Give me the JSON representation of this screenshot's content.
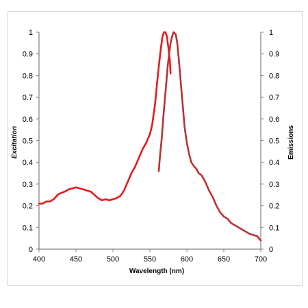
{
  "chart_data": {
    "type": "line",
    "xlabel": "Wavelength (nm)",
    "ylabel_left": "Excitation",
    "ylabel_right": "Emissions",
    "xlim": [
      400,
      700
    ],
    "ylim": [
      0,
      1
    ],
    "x_ticks": [
      "400",
      "450",
      "500",
      "550",
      "600",
      "650",
      "700"
    ],
    "y_ticks": [
      "0",
      "0.1",
      "0.2",
      "0.3",
      "0.4",
      "0.5",
      "0.6",
      "0.7",
      "0.8",
      "0.9",
      "1"
    ],
    "grid": false,
    "series": [
      {
        "color": "#e8191a",
        "points": [
          [
            400,
            0.21
          ],
          [
            405,
            0.21
          ],
          [
            410,
            0.22
          ],
          [
            415,
            0.22
          ],
          [
            420,
            0.23
          ],
          [
            425,
            0.25
          ],
          [
            430,
            0.26
          ],
          [
            435,
            0.265
          ],
          [
            440,
            0.275
          ],
          [
            445,
            0.28
          ],
          [
            450,
            0.285
          ],
          [
            455,
            0.28
          ],
          [
            460,
            0.275
          ],
          [
            465,
            0.27
          ],
          [
            470,
            0.265
          ],
          [
            475,
            0.25
          ],
          [
            480,
            0.235
          ],
          [
            485,
            0.225
          ],
          [
            490,
            0.23
          ],
          [
            495,
            0.225
          ],
          [
            500,
            0.23
          ],
          [
            505,
            0.235
          ],
          [
            510,
            0.245
          ],
          [
            515,
            0.27
          ],
          [
            520,
            0.31
          ],
          [
            525,
            0.35
          ],
          [
            530,
            0.38
          ],
          [
            535,
            0.42
          ],
          [
            540,
            0.46
          ],
          [
            545,
            0.49
          ],
          [
            550,
            0.53
          ],
          [
            553,
            0.57
          ],
          [
            555,
            0.62
          ],
          [
            557,
            0.67
          ],
          [
            559,
            0.74
          ],
          [
            561,
            0.81
          ],
          [
            563,
            0.87
          ],
          [
            565,
            0.93
          ],
          [
            567,
            0.98
          ],
          [
            569,
            1.0
          ],
          [
            571,
            1.0
          ],
          [
            573,
            0.98
          ],
          [
            575,
            0.93
          ],
          [
            577,
            0.87
          ],
          [
            578,
            0.81
          ]
        ]
      },
      {
        "color": "#b83232",
        "points": [
          [
            562,
            0.36
          ],
          [
            563,
            0.4
          ],
          [
            564,
            0.44
          ],
          [
            566,
            0.51
          ],
          [
            568,
            0.6
          ],
          [
            570,
            0.68
          ],
          [
            572,
            0.76
          ],
          [
            574,
            0.84
          ],
          [
            576,
            0.9
          ],
          [
            578,
            0.95
          ],
          [
            580,
            0.98
          ],
          [
            582,
            1.0
          ],
          [
            585,
            0.99
          ],
          [
            587,
            0.95
          ],
          [
            589,
            0.88
          ],
          [
            591,
            0.8
          ],
          [
            593,
            0.72
          ],
          [
            595,
            0.64
          ],
          [
            597,
            0.56
          ],
          [
            600,
            0.49
          ],
          [
            603,
            0.44
          ],
          [
            606,
            0.4
          ],
          [
            610,
            0.38
          ],
          [
            613,
            0.37
          ],
          [
            616,
            0.35
          ],
          [
            620,
            0.34
          ],
          [
            625,
            0.31
          ],
          [
            630,
            0.27
          ],
          [
            635,
            0.24
          ],
          [
            640,
            0.2
          ],
          [
            645,
            0.17
          ],
          [
            650,
            0.15
          ],
          [
            655,
            0.14
          ],
          [
            660,
            0.12
          ],
          [
            665,
            0.11
          ],
          [
            670,
            0.1
          ],
          [
            675,
            0.09
          ],
          [
            680,
            0.08
          ],
          [
            685,
            0.07
          ],
          [
            690,
            0.065
          ],
          [
            695,
            0.06
          ],
          [
            700,
            0.04
          ]
        ]
      }
    ]
  }
}
